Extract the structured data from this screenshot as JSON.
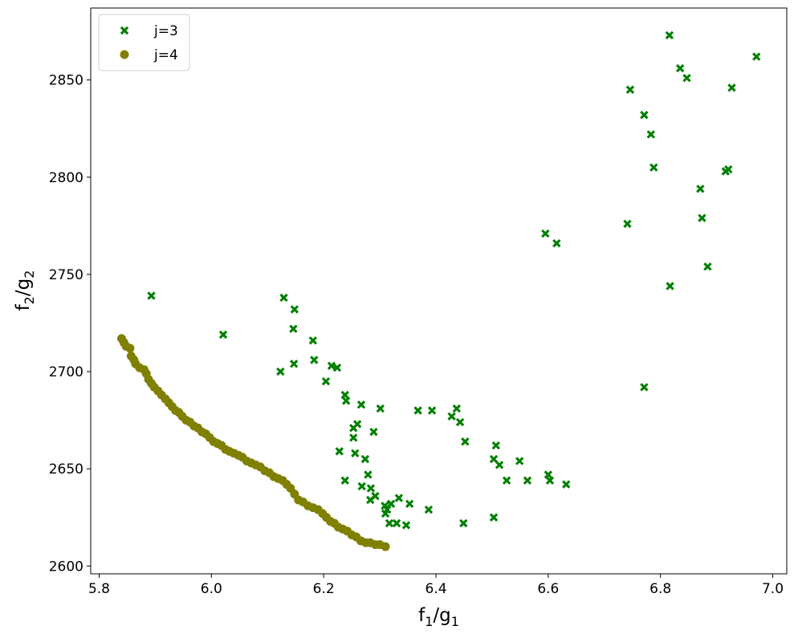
{
  "chart_data": {
    "type": "scatter",
    "xlabel": {
      "main": "f",
      "sub1": "1",
      "sep": "/g",
      "sub2": "1"
    },
    "ylabel": {
      "main": "f",
      "sub1": "2",
      "sep": "/g",
      "sub2": "2"
    },
    "xlim": [
      5.785,
      7.025
    ],
    "ylim": [
      2596,
      2887
    ],
    "xticks": [
      5.8,
      6.0,
      6.2,
      6.4,
      6.6,
      6.8,
      7.0
    ],
    "xtick_labels": [
      "5.8",
      "6.0",
      "6.2",
      "6.4",
      "6.6",
      "6.8",
      "7.0"
    ],
    "yticks": [
      2600,
      2650,
      2700,
      2750,
      2800,
      2850
    ],
    "ytick_labels": [
      "2600",
      "2650",
      "2700",
      "2750",
      "2800",
      "2850"
    ],
    "grid": false,
    "legend_position": "top-left",
    "series": [
      {
        "name": "j=3",
        "marker": "x-filled",
        "color": "#008000",
        "points": [
          [
            5.893,
            2739
          ],
          [
            6.021,
            2719
          ],
          [
            6.129,
            2738
          ],
          [
            6.148,
            2732
          ],
          [
            6.146,
            2722
          ],
          [
            6.147,
            2704
          ],
          [
            6.123,
            2700
          ],
          [
            6.181,
            2716
          ],
          [
            6.183,
            2706
          ],
          [
            6.214,
            2703
          ],
          [
            6.224,
            2702
          ],
          [
            6.204,
            2695
          ],
          [
            6.238,
            2688
          ],
          [
            6.24,
            2685
          ],
          [
            6.267,
            2683
          ],
          [
            6.301,
            2681
          ],
          [
            6.253,
            2671
          ],
          [
            6.26,
            2673
          ],
          [
            6.289,
            2669
          ],
          [
            6.253,
            2666
          ],
          [
            6.228,
            2659
          ],
          [
            6.256,
            2658
          ],
          [
            6.274,
            2655
          ],
          [
            6.279,
            2647
          ],
          [
            6.238,
            2644
          ],
          [
            6.268,
            2641
          ],
          [
            6.284,
            2640
          ],
          [
            6.292,
            2636
          ],
          [
            6.283,
            2634
          ],
          [
            6.334,
            2635
          ],
          [
            6.309,
            2631
          ],
          [
            6.313,
            2629
          ],
          [
            6.32,
            2632
          ],
          [
            6.31,
            2627
          ],
          [
            6.317,
            2622
          ],
          [
            6.33,
            2622
          ],
          [
            6.347,
            2621
          ],
          [
            6.353,
            2632
          ],
          [
            6.368,
            2680
          ],
          [
            6.393,
            2680
          ],
          [
            6.437,
            2681
          ],
          [
            6.428,
            2677
          ],
          [
            6.443,
            2674
          ],
          [
            6.452,
            2664
          ],
          [
            6.387,
            2629
          ],
          [
            6.449,
            2622
          ],
          [
            6.503,
            2625
          ],
          [
            6.507,
            2662
          ],
          [
            6.503,
            2655
          ],
          [
            6.513,
            2652
          ],
          [
            6.549,
            2654
          ],
          [
            6.526,
            2644
          ],
          [
            6.563,
            2644
          ],
          [
            6.6,
            2647
          ],
          [
            6.603,
            2644
          ],
          [
            6.632,
            2642
          ],
          [
            6.595,
            2771
          ],
          [
            6.615,
            2766
          ],
          [
            6.746,
            2845
          ],
          [
            6.771,
            2832
          ],
          [
            6.783,
            2822
          ],
          [
            6.788,
            2805
          ],
          [
            6.741,
            2776
          ],
          [
            6.771,
            2692
          ],
          [
            6.816,
            2873
          ],
          [
            6.835,
            2856
          ],
          [
            6.847,
            2851
          ],
          [
            6.817,
            2744
          ],
          [
            6.871,
            2794
          ],
          [
            6.874,
            2779
          ],
          [
            6.884,
            2754
          ],
          [
            6.916,
            2803
          ],
          [
            6.921,
            2804
          ],
          [
            6.927,
            2846
          ],
          [
            6.971,
            2862
          ]
        ]
      },
      {
        "name": "j=4",
        "marker": "circle",
        "color": "#808000",
        "points": [
          [
            5.84,
            2717
          ],
          [
            5.844,
            2715
          ],
          [
            5.848,
            2713
          ],
          [
            5.855,
            2712
          ],
          [
            5.857,
            2708
          ],
          [
            5.862,
            2706
          ],
          [
            5.865,
            2704
          ],
          [
            5.872,
            2702
          ],
          [
            5.88,
            2701
          ],
          [
            5.884,
            2699
          ],
          [
            5.888,
            2696
          ],
          [
            5.893,
            2694
          ],
          [
            5.898,
            2692
          ],
          [
            5.905,
            2690
          ],
          [
            5.911,
            2688
          ],
          [
            5.918,
            2686
          ],
          [
            5.924,
            2684
          ],
          [
            5.93,
            2682
          ],
          [
            5.936,
            2680
          ],
          [
            5.942,
            2679
          ],
          [
            5.948,
            2677
          ],
          [
            5.955,
            2675
          ],
          [
            5.962,
            2674
          ],
          [
            5.969,
            2672
          ],
          [
            5.976,
            2671
          ],
          [
            5.983,
            2669
          ],
          [
            5.99,
            2668
          ],
          [
            5.997,
            2666
          ],
          [
            6.004,
            2664
          ],
          [
            6.011,
            2663
          ],
          [
            6.018,
            2662
          ],
          [
            6.025,
            2660
          ],
          [
            6.032,
            2659
          ],
          [
            6.04,
            2658
          ],
          [
            6.048,
            2657
          ],
          [
            6.055,
            2656
          ],
          [
            6.063,
            2654
          ],
          [
            6.071,
            2653
          ],
          [
            6.079,
            2652
          ],
          [
            6.087,
            2651
          ],
          [
            6.095,
            2649
          ],
          [
            6.103,
            2648
          ],
          [
            6.111,
            2646
          ],
          [
            6.119,
            2645
          ],
          [
            6.127,
            2644
          ],
          [
            6.134,
            2642
          ],
          [
            6.141,
            2640
          ],
          [
            6.148,
            2637
          ],
          [
            6.155,
            2634
          ],
          [
            6.163,
            2633
          ],
          [
            6.172,
            2631
          ],
          [
            6.181,
            2630
          ],
          [
            6.19,
            2629
          ],
          [
            6.198,
            2627
          ],
          [
            6.205,
            2625
          ],
          [
            6.212,
            2623
          ],
          [
            6.219,
            2622
          ],
          [
            6.226,
            2620
          ],
          [
            6.234,
            2619
          ],
          [
            6.242,
            2618
          ],
          [
            6.25,
            2616
          ],
          [
            6.258,
            2615
          ],
          [
            6.266,
            2613
          ],
          [
            6.275,
            2612
          ],
          [
            6.283,
            2612
          ],
          [
            6.292,
            2611
          ],
          [
            6.3,
            2611
          ],
          [
            6.31,
            2610
          ]
        ]
      }
    ]
  }
}
